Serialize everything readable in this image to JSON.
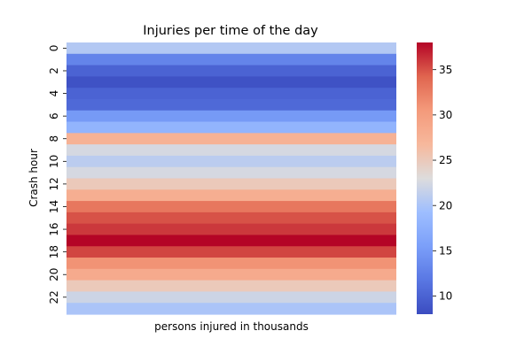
{
  "chart_data": {
    "type": "heatmap",
    "title": "Injuries per time of the day",
    "xlabel": "persons injured in thousands",
    "ylabel": "Crash hour",
    "y_categories": [
      "0",
      "1",
      "2",
      "3",
      "4",
      "5",
      "6",
      "7",
      "8",
      "9",
      "10",
      "11",
      "12",
      "13",
      "14",
      "15",
      "16",
      "17",
      "18",
      "19",
      "20",
      "21",
      "22",
      "23"
    ],
    "y_tick_labels": [
      "0",
      "2",
      "4",
      "6",
      "8",
      "10",
      "12",
      "14",
      "16",
      "18",
      "20",
      "22"
    ],
    "values": [
      20.5,
      13.0,
      10.0,
      8.5,
      10.0,
      10.5,
      15.0,
      18.0,
      27.5,
      22.5,
      21.0,
      22.5,
      25.0,
      28.0,
      33.0,
      35.0,
      36.0,
      38.0,
      35.5,
      31.0,
      28.5,
      25.0,
      22.0,
      20.0
    ],
    "colorbar": {
      "vmin": 8,
      "vmax": 38,
      "ticks": [
        10,
        15,
        20,
        25,
        30,
        35
      ],
      "tick_labels": [
        "10",
        "15",
        "20",
        "25",
        "30",
        "35"
      ],
      "colormap": "coolwarm"
    },
    "grid": false
  }
}
